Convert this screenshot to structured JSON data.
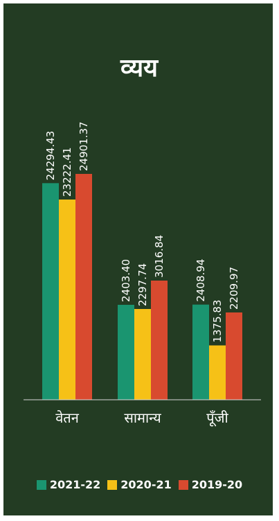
{
  "chart_data": {
    "type": "bar",
    "title": "व्यय",
    "categories": [
      "वेतन",
      "सामान्य",
      "पूँजी"
    ],
    "series": [
      {
        "name": "2021-22",
        "color": "#1a9570",
        "values": [
          24294.43,
          2403.4,
          2408.94
        ],
        "labels": [
          "24294.43",
          "2403.40",
          "2408.94"
        ]
      },
      {
        "name": "2020-21",
        "color": "#f6c117",
        "values": [
          23222.41,
          2297.74,
          1375.83
        ],
        "labels": [
          "23222.41",
          "2297.74",
          "1375.83"
        ]
      },
      {
        "name": "2019-20",
        "color": "#d84a2f",
        "values": [
          24901.37,
          3016.84,
          2209.97
        ],
        "labels": [
          "24901.37",
          "3016.84",
          "2209.97"
        ]
      }
    ],
    "axis_break": true,
    "grid": false,
    "legend_position": "bottom"
  },
  "colors": {
    "background": "#233c23",
    "text": "#ffffff",
    "axis": "#d8d8d8"
  }
}
